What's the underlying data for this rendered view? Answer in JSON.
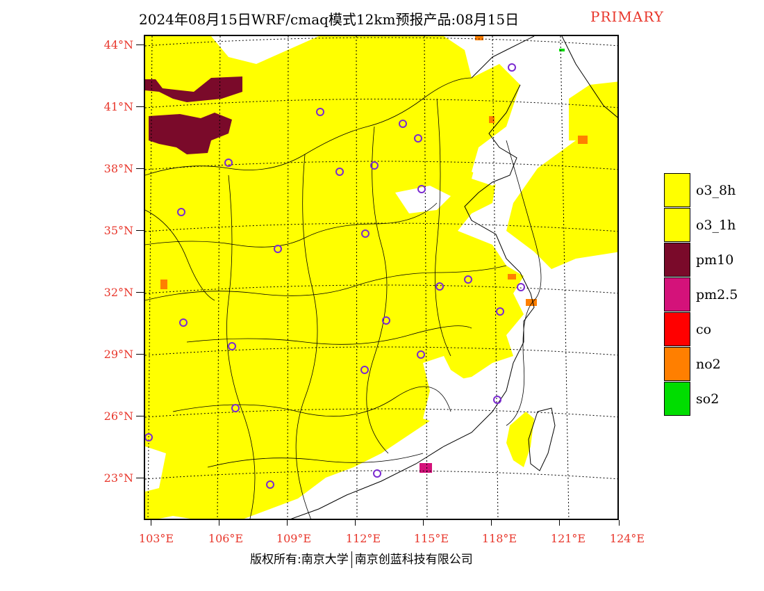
{
  "title": {
    "main": "2024年08月15日WRF/cmaq模式12km预报产品:08月15日",
    "tag": "PRIMARY"
  },
  "axes": {
    "lat_labels": [
      "44°N",
      "41°N",
      "38°N",
      "35°N",
      "32°N",
      "29°N",
      "26°N",
      "23°N"
    ],
    "lon_labels": [
      "103°E",
      "106°E",
      "109°E",
      "112°E",
      "115°E",
      "118°E",
      "121°E",
      "124°E"
    ]
  },
  "legend": {
    "items": [
      {
        "label": "o3_8h",
        "color": "#ffff00"
      },
      {
        "label": "o3_1h",
        "color": "#ffff00"
      },
      {
        "label": "pm10",
        "color": "#7a0a2a"
      },
      {
        "label": "pm2.5",
        "color": "#d4127a"
      },
      {
        "label": "co",
        "color": "#ff0000"
      },
      {
        "label": "no2",
        "color": "#ff7f00"
      },
      {
        "label": "so2",
        "color": "#00dd00"
      }
    ]
  },
  "credit": {
    "left": "版权所有:南京大学",
    "right": "南京创蓝科技有限公司"
  },
  "colors": {
    "land_o3": "#ffff00",
    "pm10": "#7a0a2a",
    "no2": "#ff7f00",
    "pm25": "#d4127a",
    "station_marker": "#7a2ad0",
    "label_red": "#e8362b"
  }
}
